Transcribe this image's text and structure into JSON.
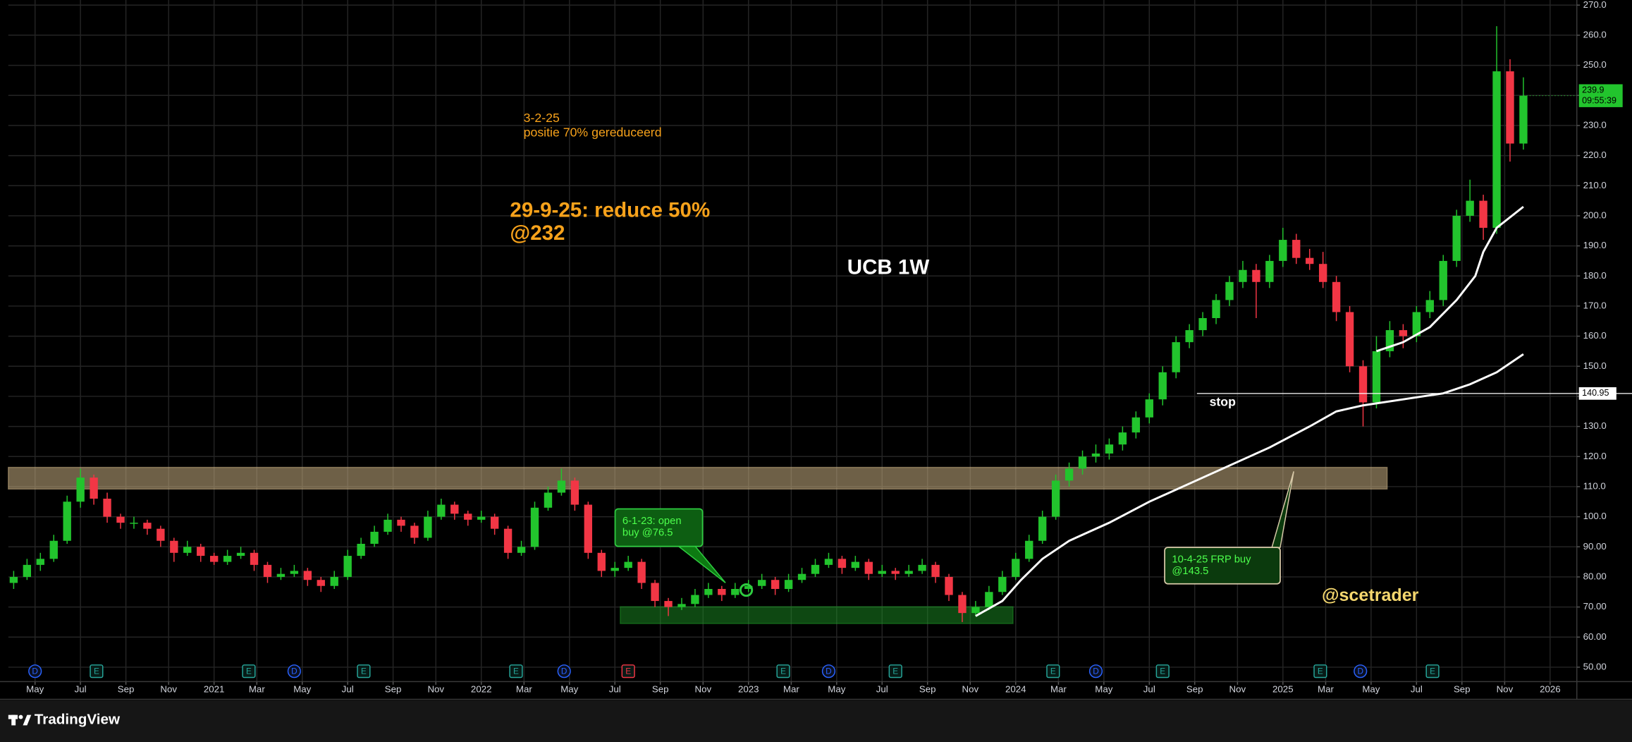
{
  "chart_data": {
    "type": "candlestick",
    "symbol": "UCB 1W",
    "up_color": "#22c42d",
    "down_color": "#f23645",
    "xlim": [
      2020.23,
      2026.1
    ],
    "ylim": [
      45.2,
      271.7
    ],
    "grid": true,
    "xticks": [
      {
        "value": 2020.33,
        "label": "May"
      },
      {
        "value": 2020.5,
        "label": "Jul"
      },
      {
        "value": 2020.67,
        "label": "Sep"
      },
      {
        "value": 2020.83,
        "label": "Nov"
      },
      2021,
      {
        "value": 2021.16,
        "label": "Mar"
      },
      {
        "value": 2021.33,
        "label": "May"
      },
      {
        "value": 2021.5,
        "label": "Jul"
      },
      {
        "value": 2021.67,
        "label": "Sep"
      },
      {
        "value": 2021.83,
        "label": "Nov"
      },
      2022,
      {
        "value": 2022.16,
        "label": "Mar"
      },
      {
        "value": 2022.33,
        "label": "May"
      },
      {
        "value": 2022.5,
        "label": "Jul"
      },
      {
        "value": 2022.67,
        "label": "Sep"
      },
      {
        "value": 2022.83,
        "label": "Nov"
      },
      2023,
      {
        "value": 2023.16,
        "label": "Mar"
      },
      {
        "value": 2023.33,
        "label": "May"
      },
      {
        "value": 2023.5,
        "label": "Jul"
      },
      {
        "value": 2023.67,
        "label": "Sep"
      },
      {
        "value": 2023.83,
        "label": "Nov"
      },
      2024,
      {
        "value": 2024.16,
        "label": "Mar"
      },
      {
        "value": 2024.33,
        "label": "May"
      },
      {
        "value": 2024.5,
        "label": "Jul"
      },
      {
        "value": 2024.67,
        "label": "Sep"
      },
      {
        "value": 2024.83,
        "label": "Nov"
      },
      2025,
      {
        "value": 2025.16,
        "label": "Mar"
      },
      {
        "value": 2025.33,
        "label": "May"
      },
      {
        "value": 2025.5,
        "label": "Jul"
      },
      {
        "value": 2025.67,
        "label": "Sep"
      },
      {
        "value": 2025.83,
        "label": "Nov"
      },
      2026
    ],
    "yticks": [
      {
        "value": 50,
        "label": "50.00"
      },
      {
        "value": 60,
        "label": "60.00"
      },
      {
        "value": 70,
        "label": "70.00"
      },
      {
        "value": 80,
        "label": "80.00"
      },
      {
        "value": 90,
        "label": "90.00"
      },
      {
        "value": 100,
        "label": "100.0"
      },
      {
        "value": 110,
        "label": "110.0"
      },
      {
        "value": 120,
        "label": "120.0"
      },
      {
        "value": 130,
        "label": "130.0"
      },
      {
        "value": 140,
        "label": "140.0"
      },
      {
        "value": 150,
        "label": "150.0"
      },
      {
        "value": 160,
        "label": "160.0"
      },
      {
        "value": 170,
        "label": "170.0"
      },
      {
        "value": 180,
        "label": "180.0"
      },
      {
        "value": 190,
        "label": "190.0"
      },
      {
        "value": 200,
        "label": "200.0"
      },
      {
        "value": 210,
        "label": "210.0"
      },
      {
        "value": 220,
        "label": "220.0"
      },
      {
        "value": 230,
        "label": "230.0"
      },
      {
        "value": 240,
        "label": "240.0"
      },
      {
        "value": 250,
        "label": "250.0"
      },
      {
        "value": 260,
        "label": "260.0"
      },
      {
        "value": 270,
        "label": "270.0"
      }
    ],
    "x": [
      2020.25,
      2020.3,
      2020.35,
      2020.4,
      2020.45,
      2020.5,
      2020.55,
      2020.6,
      2020.65,
      2020.7,
      2020.75,
      2020.8,
      2020.85,
      2020.9,
      2020.95,
      2021,
      2021.05,
      2021.1,
      2021.15,
      2021.2,
      2021.25,
      2021.3,
      2021.35,
      2021.4,
      2021.45,
      2021.5,
      2021.55,
      2021.6,
      2021.65,
      2021.7,
      2021.75,
      2021.8,
      2021.85,
      2021.9,
      2021.95,
      2022,
      2022.05,
      2022.1,
      2022.15,
      2022.2,
      2022.25,
      2022.3,
      2022.35,
      2022.4,
      2022.45,
      2022.5,
      2022.55,
      2022.6,
      2022.65,
      2022.7,
      2022.75,
      2022.8,
      2022.85,
      2022.9,
      2022.95,
      2023,
      2023.05,
      2023.1,
      2023.15,
      2023.2,
      2023.25,
      2023.3,
      2023.35,
      2023.4,
      2023.45,
      2023.5,
      2023.55,
      2023.6,
      2023.65,
      2023.7,
      2023.75,
      2023.8,
      2023.85,
      2023.9,
      2023.95,
      2024,
      2024.05,
      2024.1,
      2024.15,
      2024.2,
      2024.25,
      2024.3,
      2024.35,
      2024.4,
      2024.45,
      2024.5,
      2024.55,
      2024.6,
      2024.65,
      2024.7,
      2024.75,
      2024.8,
      2024.85,
      2024.9,
      2024.95,
      2025,
      2025.05,
      2025.1,
      2025.15,
      2025.2,
      2025.25,
      2025.3,
      2025.35,
      2025.4,
      2025.45,
      2025.5,
      2025.55,
      2025.6,
      2025.65,
      2025.7,
      2025.75,
      2025.8,
      2025.85,
      2025.9
    ],
    "open": [
      78,
      80,
      84,
      86,
      92,
      105,
      113,
      106,
      100,
      98,
      98,
      96,
      92,
      88,
      90,
      87,
      85,
      87,
      88,
      84,
      80,
      81,
      82,
      79,
      77,
      80,
      87,
      91,
      95,
      99,
      97,
      93,
      100,
      104,
      101,
      99,
      100,
      96,
      88,
      90,
      103,
      108,
      112,
      104,
      88,
      82,
      83,
      85,
      78,
      72,
      70,
      71,
      74,
      76,
      74,
      76,
      77,
      79,
      76,
      79,
      81,
      84,
      86,
      83,
      85,
      81,
      82,
      81,
      82,
      84,
      80,
      74,
      68,
      70,
      75,
      80,
      86,
      92,
      100,
      112,
      116,
      120,
      121,
      124,
      128,
      133,
      139,
      148,
      158,
      162,
      166,
      172,
      178,
      182,
      178,
      185,
      192,
      186,
      184,
      178,
      168,
      150,
      138,
      155,
      162,
      160,
      168,
      172,
      185,
      200,
      205,
      196,
      248,
      224
    ],
    "high": [
      82,
      86,
      88,
      94,
      107,
      116,
      114,
      108,
      101,
      100,
      99,
      97,
      93,
      92,
      91,
      88,
      89,
      90,
      89,
      85,
      83,
      84,
      83,
      80,
      82,
      89,
      93,
      97,
      101,
      100,
      98,
      102,
      106,
      105,
      102,
      102,
      101,
      97,
      92,
      105,
      110,
      116,
      113,
      105,
      89,
      85,
      87,
      86,
      79,
      73,
      73,
      76,
      78,
      77,
      78,
      79,
      81,
      80,
      81,
      83,
      86,
      88,
      87,
      87,
      86,
      84,
      83,
      84,
      86,
      85,
      81,
      75,
      72,
      77,
      82,
      88,
      94,
      102,
      114,
      118,
      122,
      124,
      126,
      130,
      135,
      141,
      150,
      160,
      164,
      168,
      174,
      180,
      185,
      184,
      187,
      196,
      194,
      189,
      188,
      180,
      170,
      152,
      160,
      165,
      164,
      170,
      175,
      187,
      202,
      212,
      207,
      263,
      252,
      246
    ],
    "low": [
      76,
      79,
      82,
      85,
      91,
      103,
      104,
      98,
      96,
      96,
      94,
      90,
      85,
      87,
      85,
      84,
      84,
      86,
      82,
      78,
      79,
      80,
      77,
      75,
      76,
      79,
      86,
      90,
      94,
      95,
      91,
      92,
      99,
      99,
      97,
      98,
      94,
      86,
      87,
      89,
      102,
      107,
      102,
      86,
      80,
      80,
      82,
      76,
      70,
      67,
      69,
      70,
      73,
      72,
      73,
      75,
      76,
      74,
      75,
      78,
      80,
      83,
      81,
      82,
      79,
      80,
      79,
      80,
      81,
      78,
      72,
      65,
      67,
      69,
      74,
      79,
      85,
      91,
      99,
      110,
      114,
      118,
      119,
      122,
      126,
      131,
      137,
      146,
      156,
      160,
      164,
      170,
      176,
      166,
      176,
      183,
      184,
      182,
      176,
      165,
      148,
      130,
      136,
      153,
      156,
      158,
      166,
      170,
      183,
      198,
      192,
      194,
      218,
      222
    ],
    "close": [
      80,
      84,
      86,
      92,
      105,
      113,
      106,
      100,
      98,
      98,
      96,
      92,
      88,
      90,
      87,
      85,
      87,
      88,
      84,
      80,
      81,
      82,
      79,
      77,
      80,
      87,
      91,
      95,
      99,
      97,
      93,
      100,
      104,
      101,
      99,
      100,
      96,
      88,
      90,
      103,
      108,
      112,
      104,
      88,
      82,
      83,
      85,
      78,
      72,
      70,
      71,
      74,
      76,
      74,
      76,
      77,
      79,
      76,
      79,
      81,
      84,
      86,
      83,
      85,
      81,
      82,
      81,
      82,
      84,
      80,
      74,
      68,
      70,
      75,
      80,
      86,
      92,
      100,
      112,
      116,
      120,
      121,
      124,
      128,
      133,
      139,
      148,
      158,
      162,
      166,
      172,
      178,
      182,
      178,
      185,
      192,
      186,
      184,
      178,
      168,
      150,
      138,
      155,
      162,
      160,
      168,
      172,
      185,
      200,
      205,
      196,
      248,
      224,
      239.9
    ],
    "lines": [
      {
        "color": "#ffffff",
        "x": [
          2025.35,
          2025.45,
          2025.55,
          2025.65,
          2025.72,
          2025.75,
          2025.8,
          2025.9
        ],
        "values": [
          155,
          158,
          163,
          172,
          180,
          188,
          196,
          203
        ]
      },
      {
        "color": "#ffffff",
        "x": [
          2023.85,
          2023.95,
          2024.02,
          2024.1,
          2024.2,
          2024.35,
          2024.5,
          2024.65,
          2024.8,
          2024.95,
          2025.1,
          2025.2,
          2025.3,
          2025.45,
          2025.6,
          2025.7,
          2025.8,
          2025.9
        ],
        "values": [
          67,
          72,
          79,
          86,
          92,
          98,
          105,
          111,
          117,
          123,
          130,
          135,
          137,
          139,
          141,
          144,
          148,
          154
        ]
      }
    ],
    "zones": [
      {
        "x": [
          2020.23,
          2025.39
        ],
        "y": [
          109.2,
          116.4
        ],
        "color": "rgba(200,175,130,0.55)"
      },
      {
        "x": [
          2022.52,
          2023.99
        ],
        "y": [
          64.5,
          70.1
        ],
        "color": "rgba(30,160,40,0.45)"
      }
    ],
    "stop_level": 140.95,
    "countdown": "09:55:39",
    "events": [
      {
        "x": 2020.33,
        "label": "D",
        "color": "#2962ff"
      },
      {
        "x": 2020.56,
        "label": "E",
        "color": "#26a69a"
      },
      {
        "x": 2021.13,
        "label": "E",
        "color": "#26a69a"
      },
      {
        "x": 2021.3,
        "label": "D",
        "color": "#2962ff"
      },
      {
        "x": 2021.56,
        "label": "E",
        "color": "#26a69a"
      },
      {
        "x": 2022.13,
        "label": "E",
        "color": "#26a69a"
      },
      {
        "x": 2022.31,
        "label": "D",
        "color": "#2962ff"
      },
      {
        "x": 2022.55,
        "label": "E",
        "color": "#f23645"
      },
      {
        "x": 2023.13,
        "label": "E",
        "color": "#26a69a"
      },
      {
        "x": 2023.3,
        "label": "D",
        "color": "#2962ff"
      },
      {
        "x": 2023.55,
        "label": "E",
        "color": "#26a69a"
      },
      {
        "x": 2024.14,
        "label": "E",
        "color": "#26a69a"
      },
      {
        "x": 2024.3,
        "label": "D",
        "color": "#2962ff"
      },
      {
        "x": 2024.55,
        "label": "E",
        "color": "#26a69a"
      },
      {
        "x": 2025.14,
        "label": "E",
        "color": "#26a69a"
      },
      {
        "x": 2025.29,
        "label": "D",
        "color": "#2962ff"
      },
      {
        "x": 2025.56,
        "label": "E",
        "color": "#26a69a"
      }
    ],
    "annotations": {
      "note_reduce_70": [
        "3-2-25",
        "positie 70% gereduceerd"
      ],
      "note_reduce_50": [
        "29-9-25: reduce 50%",
        "@232"
      ],
      "note_open_buy": [
        "6-1-23: open",
        "buy @76.5"
      ],
      "note_frp_buy": [
        "10-4-25 FRP buy",
        "@143.5"
      ],
      "stop_label": "stop",
      "watermark": "@scetrader"
    },
    "brand": "TradingView"
  }
}
